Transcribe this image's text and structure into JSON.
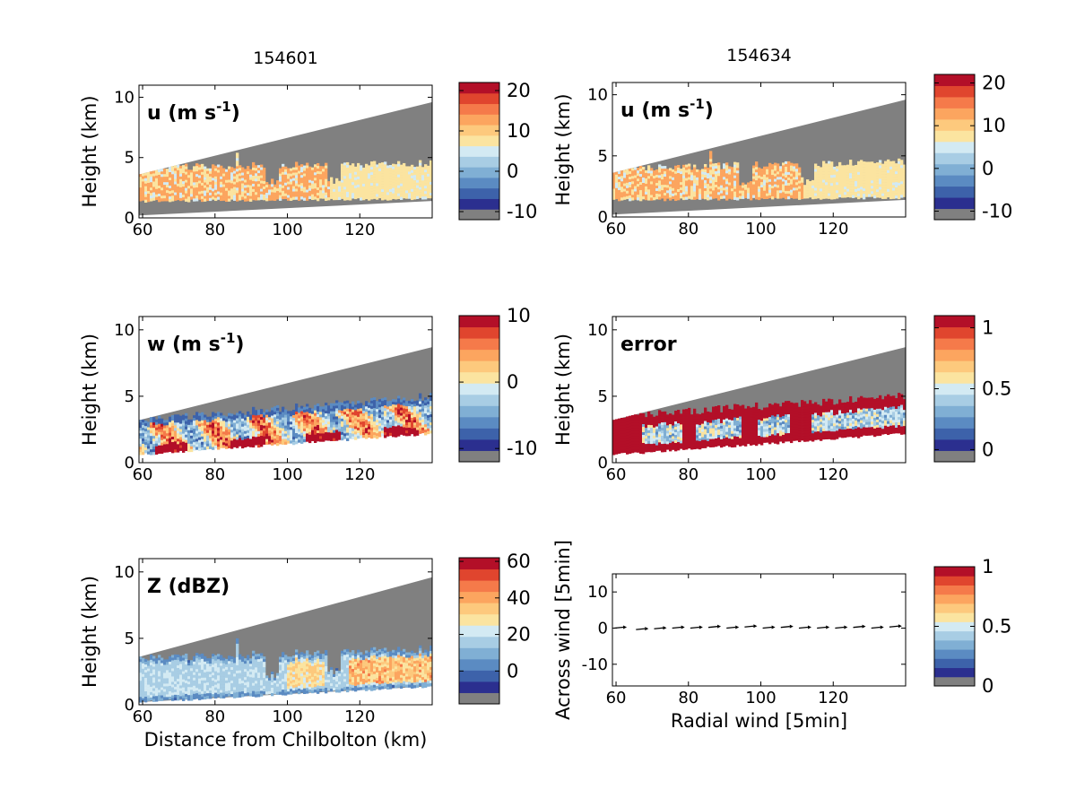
{
  "chart_data": [
    {
      "type": "heatmap",
      "title": "154601",
      "annotation": "u (m s^-1)",
      "ylabel": "Height (km)",
      "xlabel": "",
      "xlim": [
        59,
        140
      ],
      "ylim": [
        0,
        11
      ],
      "xticks": [
        60,
        80,
        100,
        120
      ],
      "yticks": [
        0,
        5,
        10
      ],
      "colorbar": {
        "ticks": [
          -10,
          0,
          10,
          20
        ],
        "range": [
          -12,
          22
        ]
      },
      "scan_top_km": [
        3.6,
        9.6
      ],
      "scan_bottom_km": [
        0.2,
        1.4
      ],
      "echo_top_km": [
        4.2,
        4.5
      ],
      "echo_bottom_km": [
        1.5,
        1.7
      ],
      "field": "u",
      "dominant_values": [
        10,
        5
      ]
    },
    {
      "type": "heatmap",
      "title": "154634",
      "annotation": "u (m s^-1)",
      "ylabel": "Height (km)",
      "xlabel": "",
      "xlim": [
        59,
        140
      ],
      "ylim": [
        0,
        11
      ],
      "xticks": [
        60,
        80,
        100,
        120
      ],
      "yticks": [
        0,
        5,
        10
      ],
      "colorbar": {
        "ticks": [
          -10,
          0,
          10,
          20
        ],
        "range": [
          -12,
          22
        ]
      },
      "scan_top_km": [
        3.6,
        9.6
      ],
      "scan_bottom_km": [
        0.2,
        1.4
      ],
      "echo_top_km": [
        4.0,
        4.5
      ],
      "echo_bottom_km": [
        1.5,
        1.7
      ],
      "field": "u",
      "dominant_values": [
        10,
        5
      ]
    },
    {
      "type": "heatmap",
      "title": "",
      "annotation": "w (m s^-1)",
      "ylabel": "Height (km)",
      "xlabel": "",
      "xlim": [
        59,
        140
      ],
      "ylim": [
        0,
        11
      ],
      "xticks": [
        60,
        80,
        100,
        120
      ],
      "yticks": [
        0,
        5,
        10
      ],
      "colorbar": {
        "ticks": [
          -10,
          0,
          10
        ],
        "range": [
          -12,
          10
        ]
      },
      "scan_top_km": [
        3.2,
        8.7
      ],
      "scan_bottom_km": [
        0.7,
        2.3
      ],
      "echo_top_km": [
        3.2,
        5.0
      ],
      "echo_bottom_km": [
        0.7,
        2.3
      ],
      "field": "w",
      "dominant_values": [
        -6,
        8
      ]
    },
    {
      "type": "heatmap",
      "title": "",
      "annotation": "error",
      "ylabel": "Height (km)",
      "xlabel": "",
      "xlim": [
        59,
        140
      ],
      "ylim": [
        0,
        11
      ],
      "xticks": [
        60,
        80,
        100,
        120
      ],
      "yticks": [
        0,
        5,
        10
      ],
      "colorbar": {
        "ticks": [
          0,
          0.5,
          1
        ],
        "range": [
          -0.1,
          1.1
        ]
      },
      "scan_top_km": [
        3.2,
        8.7
      ],
      "scan_bottom_km": [
        0.7,
        2.3
      ],
      "echo_top_km": [
        3.5,
        5.0
      ],
      "echo_bottom_km": [
        0.7,
        2.3
      ],
      "field": "error",
      "dominant_values": [
        1.0,
        0.4
      ]
    },
    {
      "type": "heatmap",
      "title": "",
      "annotation": "Z (dBZ)",
      "ylabel": "Height (km)",
      "xlabel": "Distance from Chilbolton (km)",
      "xlim": [
        59,
        140
      ],
      "ylim": [
        0,
        11
      ],
      "xticks": [
        60,
        80,
        100,
        120
      ],
      "yticks": [
        0,
        5,
        10
      ],
      "colorbar": {
        "ticks": [
          0,
          20,
          40,
          60
        ],
        "range": [
          -18,
          62
        ]
      },
      "scan_top_km": [
        3.6,
        9.6
      ],
      "scan_bottom_km": [
        0.2,
        1.4
      ],
      "echo_top_km": [
        3.5,
        4.2
      ],
      "echo_bottom_km": [
        0.3,
        1.5
      ],
      "field": "Z",
      "dominant_values": [
        10,
        30
      ]
    },
    {
      "type": "scatter",
      "title": "",
      "annotation": "",
      "ylabel": "Across wind [5min]",
      "xlabel": "Radial wind [5min]",
      "xlim": [
        59,
        140
      ],
      "ylim": [
        -16,
        15
      ],
      "xticks": [
        60,
        80,
        100,
        120
      ],
      "yticks": [
        -10,
        0,
        10
      ],
      "colorbar": {
        "ticks": [
          0,
          0.5,
          1
        ],
        "range": [
          0,
          1
        ]
      },
      "x": [
        61,
        67,
        72,
        77,
        82,
        87,
        92,
        97,
        102,
        107,
        112,
        117,
        122,
        127,
        132,
        137
      ],
      "y": [
        0,
        -0.4,
        -0.2,
        0,
        0,
        0.2,
        0,
        0.3,
        0,
        0.2,
        0,
        0,
        0,
        0.2,
        0,
        0.3
      ],
      "field": "vectors"
    }
  ],
  "palette": {
    "gray": "#808080",
    "levels": [
      "#2b2f8f",
      "#3d62aa",
      "#5b8bc2",
      "#80afd4",
      "#a8cde4",
      "#d3eaf3",
      "#fbe4a0",
      "#fdc97d",
      "#fca55f",
      "#f57a4a",
      "#e0452e",
      "#b30f28"
    ]
  }
}
